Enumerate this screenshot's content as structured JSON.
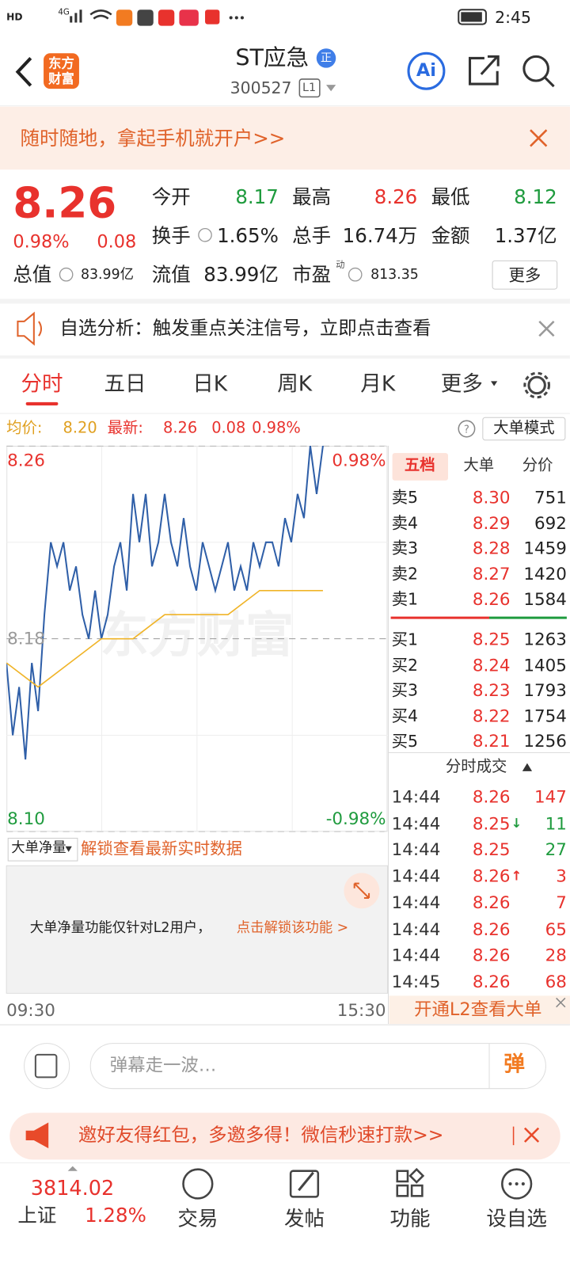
{
  "status_bar": {
    "hd": "HD",
    "net": "4G",
    "time": "2:45"
  },
  "header": {
    "logo": "东方财富",
    "title": "ST应急",
    "badge": "正",
    "code": "300527",
    "level": "L1",
    "ai": "Ai"
  },
  "banner": {
    "text": "随时随地，拿起手机就开户>>"
  },
  "quote": {
    "price": "8.26",
    "change_pct": "0.98%",
    "change": "0.08",
    "stats": [
      {
        "label": "今开",
        "value": "8.17",
        "color": "#1f9b3e"
      },
      {
        "label": "最高",
        "value": "8.26",
        "color": "#e8322d"
      },
      {
        "label": "最低",
        "value": "8.12",
        "color": "#1f9b3e"
      },
      {
        "label": "换手",
        "value": "1.65%",
        "color": "#222222"
      },
      {
        "label": "总手",
        "value": "16.74万",
        "color": "#222222"
      },
      {
        "label": "金额",
        "value": "1.37亿",
        "color": "#222222"
      },
      {
        "label": "流值",
        "value": "83.99亿",
        "color": "#222222"
      },
      {
        "label": "市盈",
        "sup": "动",
        "value": "813.35",
        "color": "#222222"
      }
    ],
    "total_value_label": "总值",
    "total_value": "83.99亿",
    "more": "更多"
  },
  "notice": {
    "text": "自选分析：触发重点关注信号，立即点击查看"
  },
  "tabs": {
    "items": [
      "分时",
      "五日",
      "日K",
      "周K",
      "月K",
      "更多"
    ],
    "active": 0
  },
  "info_row": {
    "avg_label": "均价:",
    "avg": "8.20",
    "last_label": "最新:",
    "last": "8.26",
    "change": "0.08",
    "change_pct": "0.98%",
    "mode_button": "大单模式"
  },
  "chart_data": {
    "type": "line",
    "watermark": "东方财富",
    "ylim": [
      8.1,
      8.26
    ],
    "yticks": [
      8.26,
      8.18,
      {
        "value": 8.1,
        "label": "8.10"
      }
    ],
    "y2lim": [
      -0.98,
      0.98
    ],
    "y2ticks": [
      {
        "value": 0.98,
        "label": "0.98%"
      },
      {
        "value": -0.98,
        "label": "-0.98%"
      }
    ],
    "x_labels": [
      "09:30",
      "15:30"
    ],
    "series": [
      {
        "color": "#2f5fa8",
        "values": [
          8.17,
          8.14,
          8.16,
          8.13,
          8.17,
          8.15,
          8.19,
          8.22,
          8.21,
          8.22,
          8.2,
          8.21,
          8.19,
          8.18,
          8.2,
          8.18,
          8.19,
          8.21,
          8.22,
          8.2,
          8.24,
          8.22,
          8.24,
          8.21,
          8.22,
          8.24,
          8.22,
          8.21,
          8.23,
          8.21,
          8.2,
          8.22,
          8.21,
          8.2,
          8.21,
          8.22,
          8.2,
          8.21,
          8.2,
          8.22,
          8.21,
          8.22,
          8.22,
          8.21,
          8.23,
          8.22,
          8.24,
          8.23,
          8.26,
          8.24,
          8.26
        ]
      },
      {
        "color": "#f0b428",
        "values": [
          8.17,
          8.16,
          8.17,
          8.18,
          8.18,
          8.19,
          8.19,
          8.19,
          8.2,
          8.2,
          8.2
        ]
      }
    ]
  },
  "l2": {
    "dropdown": "大单净量",
    "unlock": "解锁查看最新实时数据",
    "message": "大单净量功能仅针对L2用户，",
    "link": "点击解锁该功能 >"
  },
  "order_book": {
    "tabs": [
      "五档",
      "大单",
      "分价"
    ],
    "sell": [
      {
        "label": "卖5",
        "price": "8.30",
        "volume": "751"
      },
      {
        "label": "卖4",
        "price": "8.29",
        "volume": "692"
      },
      {
        "label": "卖3",
        "price": "8.28",
        "volume": "1459"
      },
      {
        "label": "卖2",
        "price": "8.27",
        "volume": "1420"
      },
      {
        "label": "卖1",
        "price": "8.26",
        "volume": "1584"
      }
    ],
    "buy": [
      {
        "label": "买1",
        "price": "8.25",
        "volume": "1263"
      },
      {
        "label": "买2",
        "price": "8.24",
        "volume": "1405"
      },
      {
        "label": "买3",
        "price": "8.23",
        "volume": "1793"
      },
      {
        "label": "买4",
        "price": "8.22",
        "volume": "1754"
      },
      {
        "label": "买5",
        "price": "8.21",
        "volume": "1256"
      }
    ]
  },
  "trades": {
    "title": "分时成交",
    "rows": [
      {
        "time": "14:44",
        "price": "8.26",
        "volume": "147",
        "color": "#e8322d"
      },
      {
        "time": "14:44",
        "price": "8.25",
        "flag": "↓",
        "volume": "11",
        "color": "#1f9b3e"
      },
      {
        "time": "14:44",
        "price": "8.25",
        "volume": "27",
        "color": "#1f9b3e"
      },
      {
        "time": "14:44",
        "price": "8.26",
        "flag": "↑",
        "volume": "3",
        "color": "#e8322d"
      },
      {
        "time": "14:44",
        "price": "8.26",
        "volume": "7",
        "color": "#e8322d"
      },
      {
        "time": "14:44",
        "price": "8.26",
        "volume": "65",
        "color": "#e8322d"
      },
      {
        "time": "14:44",
        "price": "8.26",
        "volume": "28",
        "color": "#e8322d"
      },
      {
        "time": "14:45",
        "price": "8.26",
        "volume": "68",
        "color": "#e8322d"
      }
    ],
    "footer": "开通L2查看大单"
  },
  "comment": {
    "placeholder": "弹幕走一波…",
    "button": "弹"
  },
  "promo": {
    "text": "邀好友得红包，多邀多得！微信秒速打款>>"
  },
  "nav": {
    "index_value": "3814.02",
    "index_name": "上证",
    "index_change": "1.28%",
    "items": [
      "交易",
      "发帖",
      "功能",
      "设自选"
    ]
  }
}
